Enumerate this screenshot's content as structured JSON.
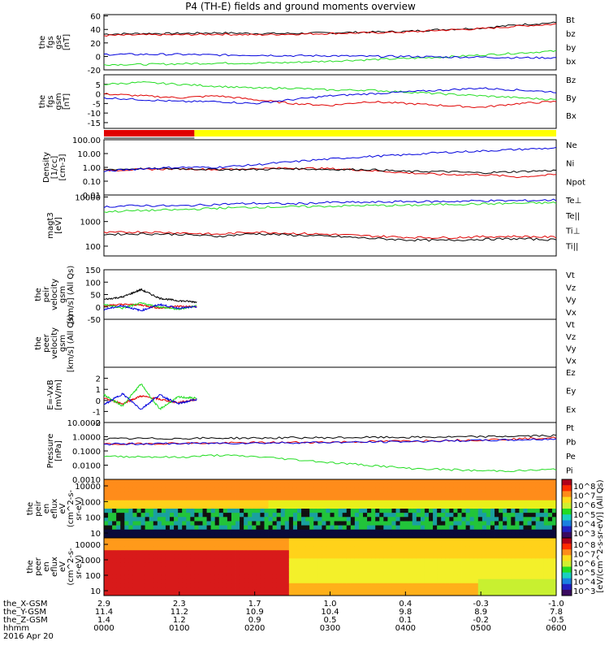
{
  "title": "P4 (TH-E) fields and ground moments overview",
  "colors": {
    "black": "#000000",
    "red": "#e00000",
    "green": "#22dd22",
    "blue": "#0000dd"
  },
  "chart_data": [
    {
      "type": "line",
      "panel": "fgs_gse_like",
      "ylabel": [
        "the",
        "fgs",
        "gse",
        "[nT]"
      ],
      "yticks": [
        "60",
        "40",
        "20",
        "0",
        "-20"
      ],
      "ylim": [
        -20,
        62
      ],
      "series": [
        {
          "name": "Bt",
          "color": "black",
          "values": [
            33,
            34,
            34,
            35,
            34,
            34,
            35,
            36,
            37,
            40,
            42,
            47,
            50
          ]
        },
        {
          "name": "bz",
          "color": "red",
          "values": [
            31,
            32,
            32,
            33,
            32,
            33,
            34,
            35,
            36,
            39,
            41,
            45,
            48
          ]
        },
        {
          "name": "by",
          "color": "green",
          "values": [
            -12,
            -12,
            -11,
            -10,
            -10,
            -9,
            -7,
            -5,
            -3,
            -1,
            2,
            5,
            8
          ]
        },
        {
          "name": "bx",
          "color": "blue",
          "values": [
            3,
            3,
            3,
            2,
            2,
            1,
            1,
            0,
            0,
            -1,
            -1,
            -2,
            -2
          ]
        }
      ]
    },
    {
      "type": "line",
      "panel": "fgs_gsm",
      "ylabel": [
        "the",
        "fgs",
        "gsm",
        "[nT]"
      ],
      "yticks": [
        "5",
        "0",
        "-5",
        "-10",
        "-15"
      ],
      "ylim": [
        -18,
        10
      ],
      "series": [
        {
          "name": "Bz",
          "color": "red",
          "values": [
            0,
            -1,
            -2,
            -1,
            -3,
            -5,
            -6,
            -4,
            -5,
            -6,
            -7,
            -5,
            -4
          ]
        },
        {
          "name": "By",
          "color": "green",
          "values": [
            5,
            6,
            5,
            4,
            3,
            3,
            2,
            2,
            1,
            0,
            -1,
            -2,
            -3
          ]
        },
        {
          "name": "Bx",
          "color": "blue",
          "values": [
            -2,
            -3,
            -4,
            -4,
            -5,
            -3,
            -1,
            0,
            1,
            2,
            3,
            2,
            1
          ]
        }
      ]
    },
    {
      "type": "line",
      "panel": "density",
      "log": true,
      "ylabel": [
        "Density",
        "[1/cc]",
        "[cm-3]"
      ],
      "yticks": [
        "100.00",
        "10.00",
        "1.00",
        "0.10",
        "0.01"
      ],
      "ylim": [
        0.01,
        100
      ],
      "series": [
        {
          "name": "Ne",
          "color": "red",
          "values": [
            0.6,
            0.7,
            0.8,
            0.7,
            0.8,
            0.9,
            0.8,
            0.6,
            0.4,
            0.3,
            0.3,
            0.2,
            0.3
          ]
        },
        {
          "name": "Ni",
          "color": "black",
          "values": [
            0.7,
            0.8,
            0.8,
            0.7,
            0.7,
            0.8,
            0.7,
            0.7,
            0.5,
            0.5,
            0.4,
            0.5,
            0.6
          ]
        },
        {
          "name": "Npot",
          "color": "blue",
          "values": [
            0.5,
            0.8,
            1.0,
            1.0,
            1.5,
            2.5,
            4,
            6,
            8,
            12,
            15,
            20,
            25
          ]
        }
      ]
    },
    {
      "type": "line",
      "panel": "temperature",
      "log": true,
      "ylabel": [
        "magt3",
        "[eV]"
      ],
      "yticks": [
        "10000",
        "1000",
        "100"
      ],
      "ylim": [
        40,
        12000
      ],
      "series": [
        {
          "name": "Te⊥",
          "color": "red",
          "values": [
            350,
            380,
            350,
            300,
            380,
            330,
            300,
            260,
            230,
            220,
            240,
            250,
            230
          ]
        },
        {
          "name": "Te||",
          "color": "black",
          "values": [
            300,
            320,
            300,
            250,
            320,
            280,
            250,
            210,
            180,
            170,
            190,
            200,
            180
          ]
        },
        {
          "name": "Ti⊥",
          "color": "blue",
          "values": [
            4000,
            4500,
            4300,
            5000,
            5500,
            5200,
            6000,
            6000,
            6500,
            6500,
            7000,
            7000,
            7500
          ]
        },
        {
          "name": "Ti||",
          "color": "green",
          "values": [
            2500,
            2800,
            3000,
            3500,
            3800,
            4000,
            4200,
            4500,
            4500,
            5000,
            5200,
            5500,
            5800
          ]
        }
      ]
    },
    {
      "type": "line",
      "panel": "peir_velocity",
      "ylabel": [
        "the",
        "peir",
        "velocity",
        "gsm",
        "[km/s] (All Qs)"
      ],
      "yticks": [
        "150",
        "100",
        "50",
        "0",
        "-50"
      ],
      "ylim": [
        -50,
        150
      ],
      "series": [
        {
          "name": "Vt",
          "color": "black",
          "values": [
            30,
            40,
            70,
            35,
            25,
            20
          ]
        },
        {
          "name": "Vz",
          "color": "red",
          "values": [
            5,
            10,
            8,
            -5,
            3,
            0
          ]
        },
        {
          "name": "Vy",
          "color": "green",
          "values": [
            10,
            -5,
            15,
            0,
            -10,
            5
          ]
        },
        {
          "name": "Vx",
          "color": "blue",
          "values": [
            -10,
            5,
            -15,
            10,
            -5,
            0
          ]
        }
      ]
    },
    {
      "type": "line",
      "panel": "peer_velocity",
      "ylabel": [
        "the",
        "peer",
        "velocity",
        "gsm",
        "[km/s] (All Qs)"
      ],
      "yticks": [],
      "ylim": [
        -50,
        150
      ],
      "series": [
        {
          "name": "Vt",
          "color": "black",
          "values": []
        },
        {
          "name": "Vz",
          "color": "red",
          "values": []
        },
        {
          "name": "Vy",
          "color": "green",
          "values": []
        },
        {
          "name": "Vx",
          "color": "blue",
          "values": []
        }
      ]
    },
    {
      "type": "line",
      "panel": "efield",
      "ylabel": [
        "E=-VxB",
        "[mV/m]"
      ],
      "yticks": [
        "2",
        "1",
        "0",
        "-1",
        "-2"
      ],
      "ylim": [
        -2,
        3
      ],
      "series": [
        {
          "name": "Ez",
          "color": "red",
          "values": [
            0.2,
            -0.3,
            0.4,
            0.1,
            -0.2,
            0.1
          ]
        },
        {
          "name": "Ey",
          "color": "green",
          "values": [
            0.5,
            -0.5,
            1.5,
            -0.8,
            0.3,
            0.2
          ]
        },
        {
          "name": "Ex",
          "color": "blue",
          "values": [
            -0.4,
            0.6,
            -0.8,
            0.5,
            -0.3,
            0.1
          ]
        }
      ]
    },
    {
      "type": "line",
      "panel": "pressure",
      "log": true,
      "ylabel": [
        "Pressure",
        "[nPa]"
      ],
      "yticks": [
        "10.0000",
        "1.0000",
        "0.1000",
        "0.0100",
        "0.0010"
      ],
      "ylim": [
        0.001,
        10
      ],
      "series": [
        {
          "name": "Pt",
          "color": "black",
          "values": [
            0.7,
            0.75,
            0.75,
            0.8,
            0.8,
            0.85,
            0.85,
            0.9,
            0.9,
            0.95,
            1.0,
            1.1,
            1.2
          ]
        },
        {
          "name": "Pb",
          "color": "red",
          "values": [
            0.3,
            0.32,
            0.35,
            0.35,
            0.38,
            0.4,
            0.42,
            0.45,
            0.5,
            0.55,
            0.6,
            0.7,
            0.85
          ]
        },
        {
          "name": "Pe",
          "color": "green",
          "values": [
            0.04,
            0.04,
            0.035,
            0.05,
            0.04,
            0.025,
            0.015,
            0.01,
            0.006,
            0.005,
            0.004,
            0.004,
            0.005
          ]
        },
        {
          "name": "Pi",
          "color": "blue",
          "values": [
            0.3,
            0.32,
            0.33,
            0.35,
            0.36,
            0.38,
            0.4,
            0.42,
            0.45,
            0.5,
            0.55,
            0.6,
            0.7
          ]
        }
      ]
    },
    {
      "type": "heatmap",
      "panel": "peir_eflux",
      "ylabel": [
        "the",
        "peir",
        "en",
        "eflux",
        "eV",
        "(cm^2-s-",
        "sr-eV)"
      ],
      "yticks": [
        "10000",
        "1000",
        "100",
        "10"
      ]
    },
    {
      "type": "heatmap",
      "panel": "peer_eflux",
      "ylabel": [
        "the",
        "peer",
        "en",
        "eflux",
        "eV",
        "(cm^2-s-",
        "sr-eV)"
      ],
      "yticks": [
        "10000",
        "1000",
        "100",
        "10"
      ]
    }
  ],
  "colorbar": {
    "label": "[eV/(cm^2-s-sr-eV)] (All Qs)",
    "upper_ticks": [
      "10^8",
      "10^7",
      "10^6",
      "10^5",
      "10^4",
      "10^3"
    ],
    "lower_ticks": [
      "10^8",
      "10^7",
      "10^6",
      "10^5",
      "10^4",
      "10^3"
    ]
  },
  "time_axis": {
    "rows": [
      {
        "label": "the_X-GSM",
        "values": [
          "2.9",
          "2.3",
          "1.7",
          "1.0",
          "0.4",
          "-0.3",
          "-1.0"
        ]
      },
      {
        "label": "the_Y-GSM",
        "values": [
          "11.4",
          "11.2",
          "10.9",
          "10.4",
          "9.8",
          "8.9",
          "7.8"
        ]
      },
      {
        "label": "the_Z-GSM",
        "values": [
          "1.4",
          "1.2",
          "0.9",
          "0.5",
          "0.1",
          "-0.2",
          "-0.5"
        ]
      },
      {
        "label": "hhmm",
        "values": [
          "0000",
          "0100",
          "0200",
          "0300",
          "0400",
          "0500",
          "0600"
        ]
      }
    ],
    "date": "2016 Apr 20"
  },
  "status_bar": {
    "left_color": "#e00000",
    "right_color": "#ffff00"
  }
}
